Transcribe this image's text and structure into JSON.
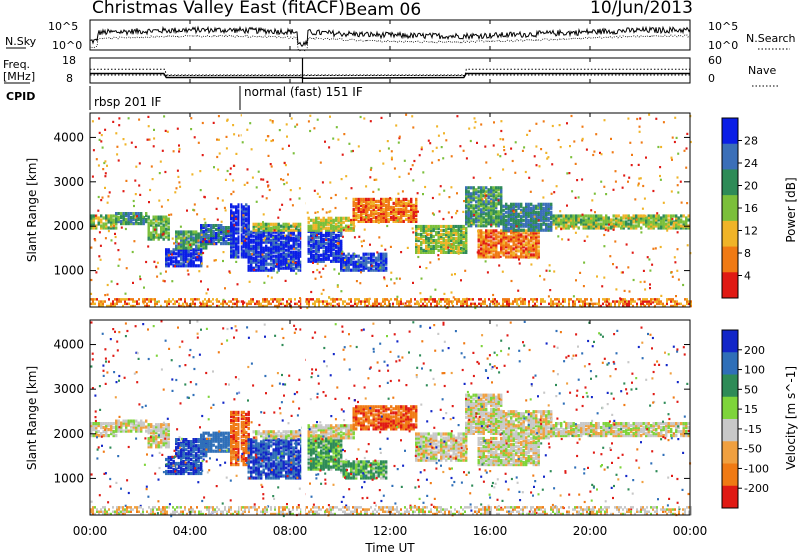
{
  "header": {
    "title": "Christmas Valley East (fitACF)",
    "beam": "Beam 06",
    "date": "10/Jun/2013"
  },
  "chart_data": {
    "type": "heatmap",
    "xlabel": "Time UT",
    "x_ticks": [
      "00:00",
      "04:00",
      "08:00",
      "12:00",
      "16:00",
      "20:00",
      "00:00"
    ],
    "x_range_hours": [
      0,
      24
    ],
    "noise_panel": {
      "left_label": "N.Sky",
      "right_label": "N.Search",
      "left_ticks": [
        "10^5",
        "10^0"
      ],
      "right_ticks": [
        "10^5",
        "10^0"
      ],
      "log_scale": true
    },
    "freq_panel": {
      "left_label_1": "Freq.",
      "left_label_2": "[MHz]",
      "left_ticks": [
        "18",
        "8"
      ],
      "left_range": [
        8,
        18
      ],
      "right_label": "Nave",
      "right_ticks": [
        "60",
        "0"
      ],
      "right_range": [
        0,
        60
      ],
      "frequency_mhz": [
        {
          "t": 0.0,
          "v": 11.8
        },
        {
          "t": 2.95,
          "v": 11.8
        },
        {
          "t": 3.05,
          "v": 10.2
        },
        {
          "t": 8.5,
          "v": 10.2
        },
        {
          "t": 8.5,
          "v": 9.9
        },
        {
          "t": 14.95,
          "v": 10.2
        },
        {
          "t": 15.05,
          "v": 11.8
        },
        {
          "t": 24.0,
          "v": 11.8
        }
      ],
      "nave": [
        {
          "t": 0.0,
          "v": 33
        },
        {
          "t": 3.0,
          "v": 33
        },
        {
          "t": 3.05,
          "v": 18
        },
        {
          "t": 15.0,
          "v": 18
        },
        {
          "t": 15.05,
          "v": 33
        },
        {
          "t": 24.0,
          "v": 33
        }
      ]
    },
    "cpid": {
      "label": "CPID",
      "modes": [
        {
          "start": 0.0,
          "end": 6.0,
          "name": "rbsp 201 IF"
        },
        {
          "start": 6.0,
          "end": 24.0,
          "name": "normal (fast) 151 IF"
        }
      ]
    },
    "power_panel": {
      "ylabel": "Slant Range [km]",
      "y_ticks": [
        1000,
        2000,
        3000,
        4000
      ],
      "y_range": [
        180,
        4550
      ],
      "colorbar_label": "Power [dB]",
      "colorbar_ticks": [
        "28",
        "24",
        "20",
        "16",
        "12",
        "8",
        "4"
      ],
      "colorscale": [
        "#0a1ee6",
        "#3b6fb8",
        "#2e8b57",
        "#7bbf3a",
        "#f0b428",
        "#f07a14",
        "#e01a14"
      ]
    },
    "velocity_panel": {
      "ylabel": "Slant Range [km]",
      "y_ticks": [
        1000,
        2000,
        3000,
        4000
      ],
      "y_range": [
        180,
        4550
      ],
      "colorbar_label": "Velocity [m s^-1]",
      "colorbar_ticks": [
        "200",
        "100",
        "50",
        "15",
        "-15",
        "-50",
        "-100",
        "-200"
      ],
      "colorscale": [
        "#1226c8",
        "#2f6fb8",
        "#2e8b57",
        "#7ed43a",
        "#c8c8c8",
        "#f0a040",
        "#f07a14",
        "#e01a14"
      ]
    },
    "scatter_bands": [
      {
        "t0": 0.0,
        "t1": 1.0,
        "r0": 1950,
        "r1": 2250,
        "power": 16,
        "vel": 0
      },
      {
        "t0": 1.0,
        "t1": 2.3,
        "r0": 2050,
        "r1": 2300,
        "power": 20,
        "vel": 0
      },
      {
        "t0": 2.3,
        "t1": 3.2,
        "r0": 1700,
        "r1": 2200,
        "power": 18,
        "vel": 0
      },
      {
        "t0": 3.0,
        "t1": 4.4,
        "r0": 1100,
        "r1": 1500,
        "power": 28,
        "vel": 150
      },
      {
        "t0": 3.4,
        "t1": 4.6,
        "r0": 1500,
        "r1": 1900,
        "power": 20,
        "vel": 150
      },
      {
        "t0": 4.4,
        "t1": 5.6,
        "r0": 1600,
        "r1": 2050,
        "power": 24,
        "vel": 120
      },
      {
        "t0": 5.6,
        "t1": 6.3,
        "r0": 1300,
        "r1": 2500,
        "power": 28,
        "vel": -60
      },
      {
        "t0": 6.3,
        "t1": 8.4,
        "r0": 1000,
        "r1": 1900,
        "power": 28,
        "vel": 150
      },
      {
        "t0": 6.5,
        "t1": 8.4,
        "r0": 1900,
        "r1": 2050,
        "power": 16,
        "vel": 0
      },
      {
        "t0": 8.7,
        "t1": 10.0,
        "r0": 1200,
        "r1": 1900,
        "power": 28,
        "vel": 40
      },
      {
        "t0": 10.0,
        "t1": 11.8,
        "r0": 1000,
        "r1": 1400,
        "power": 26,
        "vel": 40
      },
      {
        "t0": 8.7,
        "t1": 10.5,
        "r0": 1900,
        "r1": 2200,
        "power": 14,
        "vel": 0
      },
      {
        "t0": 10.5,
        "t1": 13.0,
        "r0": 2100,
        "r1": 2600,
        "power": 8,
        "vel": -60
      },
      {
        "t0": 13.0,
        "t1": 15.0,
        "r0": 1400,
        "r1": 2000,
        "power": 16,
        "vel": 0
      },
      {
        "t0": 15.0,
        "t1": 16.5,
        "r0": 2000,
        "r1": 2900,
        "power": 20,
        "vel": 0
      },
      {
        "t0": 15.5,
        "t1": 18.0,
        "r0": 1300,
        "r1": 1900,
        "power": 8,
        "vel": 0
      },
      {
        "t0": 16.5,
        "t1": 18.5,
        "r0": 1900,
        "r1": 2500,
        "power": 22,
        "vel": 0
      },
      {
        "t0": 18.5,
        "t1": 24.0,
        "r0": 1950,
        "r1": 2250,
        "power": 16,
        "vel": 0
      }
    ]
  }
}
